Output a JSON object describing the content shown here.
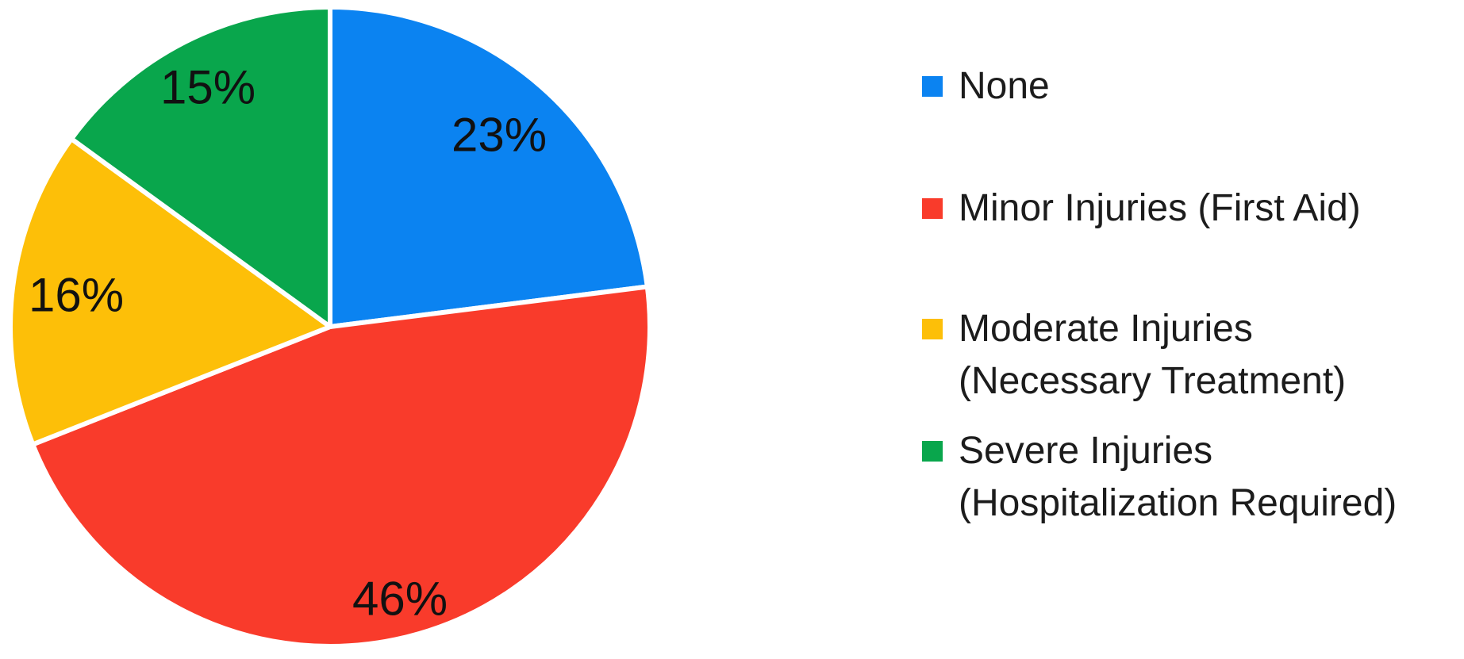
{
  "chart_data": {
    "type": "pie",
    "title": "",
    "unit": "%",
    "start_angle_deg": -90,
    "direction": "clockwise",
    "legend_position": "right",
    "labels_inside": true,
    "background_color": "#ffffff",
    "percent_label_color": "#111111",
    "legend_text_color": "#1c1c1c",
    "slices": [
      {
        "key": "none",
        "label": "None",
        "value": 23,
        "pct_label": "23%",
        "color": "#0b83f1",
        "legend_lines": [
          "None"
        ]
      },
      {
        "key": "minor-injuries",
        "label": "Minor Injuries (First Aid)",
        "value": 46,
        "pct_label": "46%",
        "color": "#f93b2b",
        "legend_lines": [
          "Minor Injuries (First Aid)"
        ]
      },
      {
        "key": "moderate-injuries",
        "label": "Moderate Injuries (Necessary Treatment)",
        "value": 16,
        "pct_label": "16%",
        "color": "#fdbf08",
        "legend_lines": [
          "Moderate Injuries",
          "(Necessary Treatment)"
        ]
      },
      {
        "key": "severe-injuries",
        "label": "Severe Injuries (Hospitalization Required)",
        "value": 15,
        "pct_label": "15%",
        "color": "#09a64c",
        "legend_lines": [
          "Severe Injuries",
          "(Hospitalization Required)"
        ]
      }
    ]
  }
}
